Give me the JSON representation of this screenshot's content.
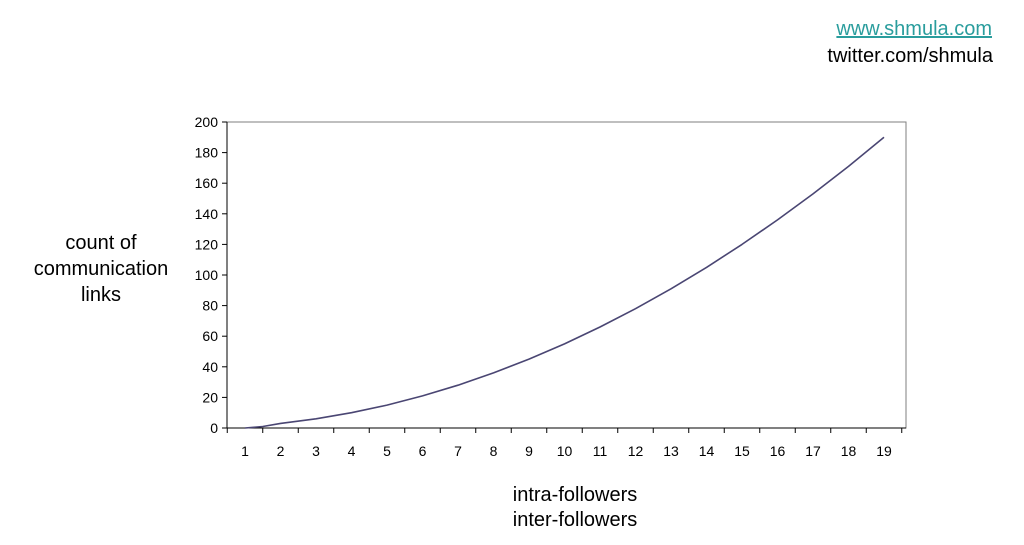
{
  "header": {
    "site": "www.shmula.com",
    "twitter": "twitter.com/shmula"
  },
  "chart_data": {
    "type": "line",
    "title": "",
    "ylabel_lines": [
      "count of",
      "communication",
      "links"
    ],
    "xlabel_lines": [
      "intra-followers",
      "inter-followers"
    ],
    "ylim": [
      0,
      200
    ],
    "yticks": [
      0,
      20,
      40,
      60,
      80,
      100,
      120,
      140,
      160,
      180,
      200
    ],
    "categories": [
      "1",
      "2",
      "3",
      "4",
      "5",
      "6",
      "7",
      "8",
      "9",
      "10",
      "11",
      "12",
      "13",
      "14",
      "15",
      "16",
      "17",
      "18",
      "19"
    ],
    "series": [
      {
        "values": [
          0,
          1,
          3,
          6,
          10,
          15,
          21,
          28,
          36,
          45,
          55,
          66,
          78,
          91,
          105,
          120,
          136,
          153,
          171,
          190
        ],
        "x": [
          1,
          1.5,
          2,
          3,
          4,
          5,
          6,
          7,
          8,
          9,
          10,
          11,
          12,
          13,
          14,
          15,
          16,
          17,
          18,
          19
        ]
      }
    ],
    "grid": false,
    "colors": {
      "line": "#4a4673",
      "axis": "#000000",
      "plot_border": "#7f7f7f"
    }
  }
}
